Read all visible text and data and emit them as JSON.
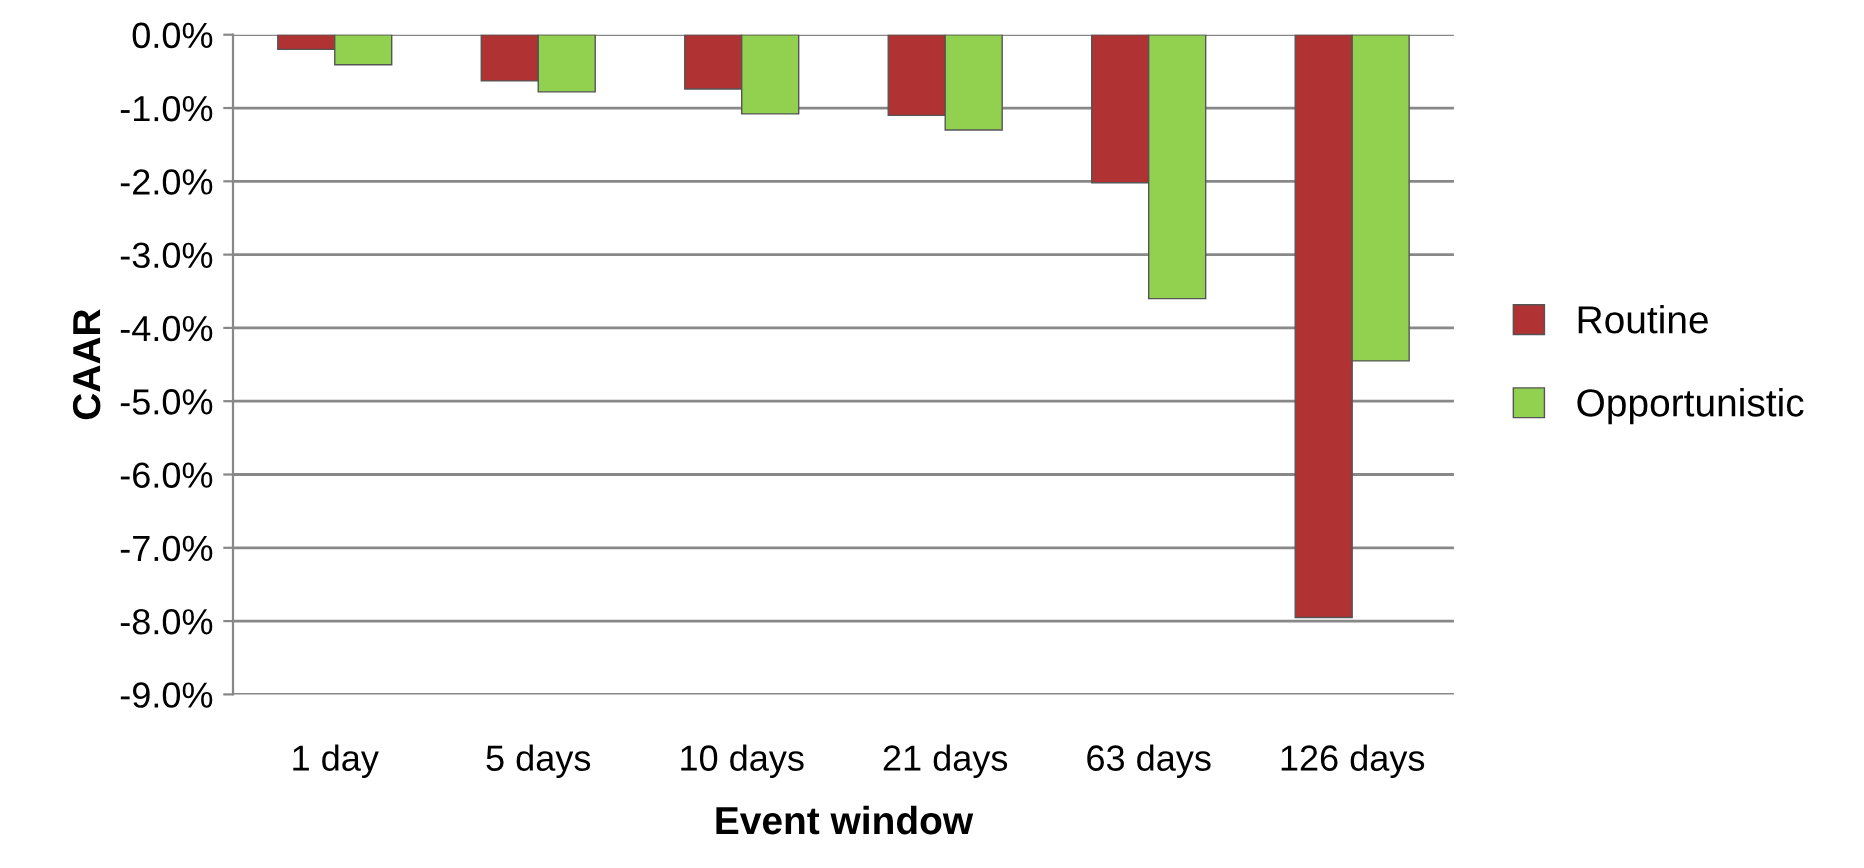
{
  "chart_data": {
    "type": "bar",
    "xlabel": "Event window",
    "ylabel": "CAAR",
    "categories": [
      "1 day",
      "5 days",
      "10 days",
      "21 days",
      "63 days",
      "126 days"
    ],
    "series": [
      {
        "name": "Routine",
        "color": "#b03232",
        "values": [
          -0.2,
          -0.63,
          -0.74,
          -1.1,
          -2.02,
          -7.95
        ]
      },
      {
        "name": "Opportunistic",
        "color": "#92d050",
        "values": [
          -0.41,
          -0.78,
          -1.08,
          -1.3,
          -3.6,
          -4.45
        ]
      }
    ],
    "ylim": [
      -9.0,
      0.0
    ],
    "yticks": [
      {
        "value": 0,
        "label": "0.0%"
      },
      {
        "value": -1,
        "label": "-1.0%"
      },
      {
        "value": -2,
        "label": "-2.0%"
      },
      {
        "value": -3,
        "label": "-3.0%"
      },
      {
        "value": -4,
        "label": "-4.0%"
      },
      {
        "value": -5,
        "label": "-5.0%"
      },
      {
        "value": -6,
        "label": "-6.0%"
      },
      {
        "value": -7,
        "label": "-7.0%"
      },
      {
        "value": -8,
        "label": "-8.0%"
      },
      {
        "value": -9,
        "label": "-9.0%"
      }
    ],
    "grid": "y",
    "legend": "right"
  }
}
